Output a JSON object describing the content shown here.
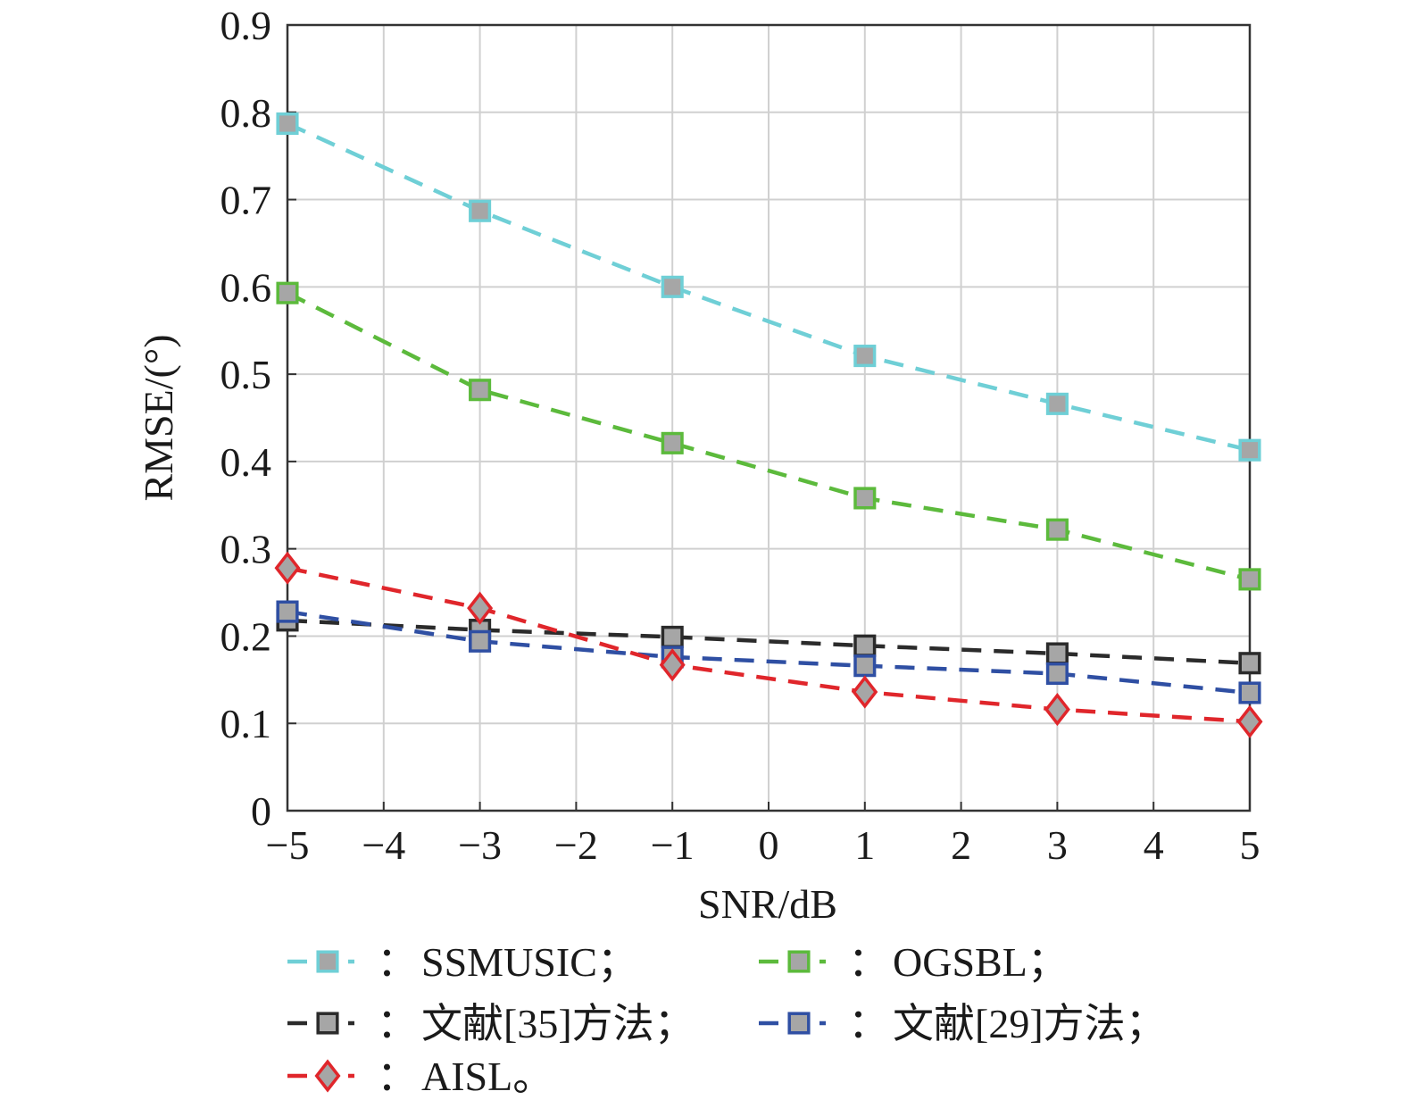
{
  "chart_data": {
    "type": "line",
    "xlabel": "SNR/dB",
    "ylabel": "RMSE/(°)",
    "xlim": [
      -5,
      5
    ],
    "ylim": [
      0,
      0.9
    ],
    "xticks": [
      -5,
      -4,
      -3,
      -2,
      -1,
      0,
      1,
      2,
      3,
      4,
      5
    ],
    "xtick_labels": [
      "−5",
      "−4",
      "−3",
      "−2",
      "−1",
      "0",
      "1",
      "2",
      "3",
      "4",
      "5"
    ],
    "yticks": [
      0,
      0.1,
      0.2,
      0.3,
      0.4,
      0.5,
      0.6,
      0.7,
      0.8,
      0.9
    ],
    "ytick_labels": [
      "0",
      "0.1",
      "0.2",
      "0.3",
      "0.4",
      "0.5",
      "0.6",
      "0.7",
      "0.8",
      "0.9"
    ],
    "grid": true,
    "legend_position": "bottom",
    "x": [
      -5,
      -3,
      -1,
      1,
      3,
      5
    ],
    "series": [
      {
        "name": "SSMUSIC",
        "legend_label": "SSMUSIC；",
        "color": "#6fcfd6",
        "marker": "square",
        "values": [
          0.787,
          0.687,
          0.6,
          0.521,
          0.466,
          0.413
        ]
      },
      {
        "name": "OGSBL",
        "legend_label": "OGSBL；",
        "color": "#5cba3c",
        "marker": "square",
        "values": [
          0.593,
          0.482,
          0.421,
          0.358,
          0.322,
          0.265
        ]
      },
      {
        "name": "文献[35]方法",
        "legend_label": "文献[35]方法；",
        "color": "#2b2b2b",
        "marker": "square",
        "values": [
          0.218,
          0.207,
          0.199,
          0.189,
          0.18,
          0.169
        ]
      },
      {
        "name": "文献[29]方法",
        "legend_label": "文献[29]方法；",
        "color": "#2f4fa3",
        "marker": "square",
        "values": [
          0.228,
          0.194,
          0.176,
          0.166,
          0.157,
          0.135
        ]
      },
      {
        "name": "AISL",
        "legend_label": "AISL。",
        "color": "#e0262b",
        "marker": "diamond",
        "values": [
          0.278,
          0.232,
          0.167,
          0.136,
          0.116,
          0.102
        ]
      }
    ],
    "legend_separator": "："
  }
}
